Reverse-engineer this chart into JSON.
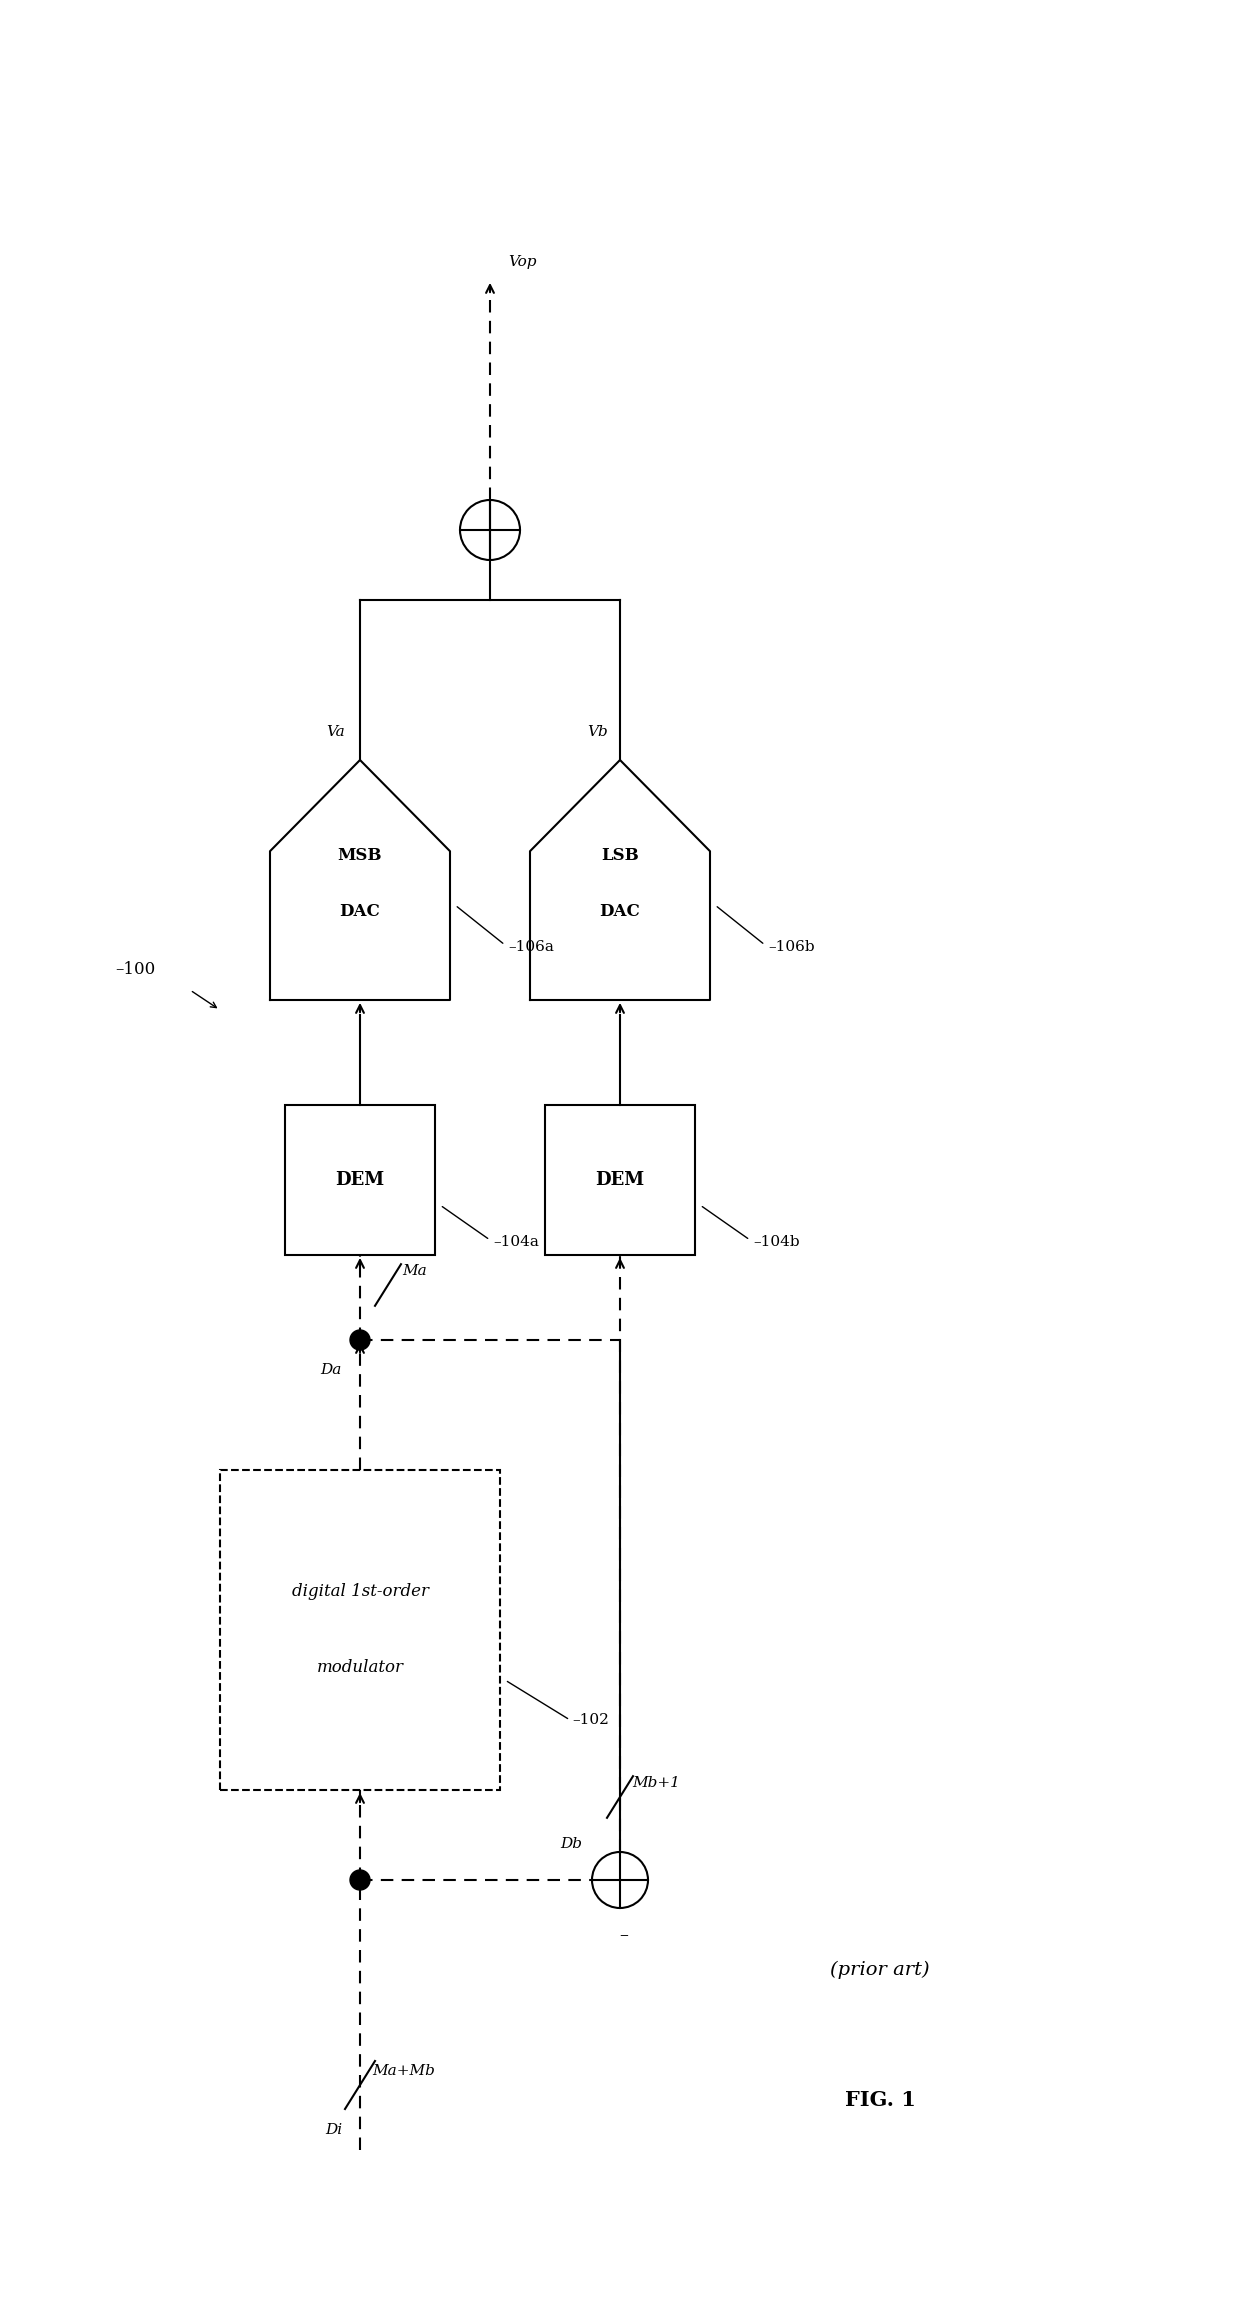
{
  "background_color": "#ffffff",
  "fig_label": "FIG. 1",
  "prior_art": "(prior art)",
  "system_label": "100",
  "mod_label": "102",
  "dem_a_label": "104a",
  "dem_b_label": "104b",
  "dac_a_label": "106a",
  "dac_b_label": "106b",
  "mod_text_1": "digital 1st-order",
  "mod_text_2": "modulator",
  "dem_text": "DEM",
  "dac_a_text_1": "MSB",
  "dac_a_text_2": "DAC",
  "dac_b_text_1": "LSB",
  "dac_b_text_2": "DAC",
  "di_label": "Di",
  "da_label": "Da",
  "db_label": "Db",
  "ma_label": "Ma",
  "mb_label": "Mb+1",
  "ma_mb_label": "Ma+Mb",
  "va_label": "Va",
  "vb_label": "Vb",
  "vop_label": "Vop",
  "lw": 1.5,
  "lw_thin": 1.0,
  "fontsize_main": 12,
  "fontsize_label": 11,
  "fontsize_caption": 14
}
